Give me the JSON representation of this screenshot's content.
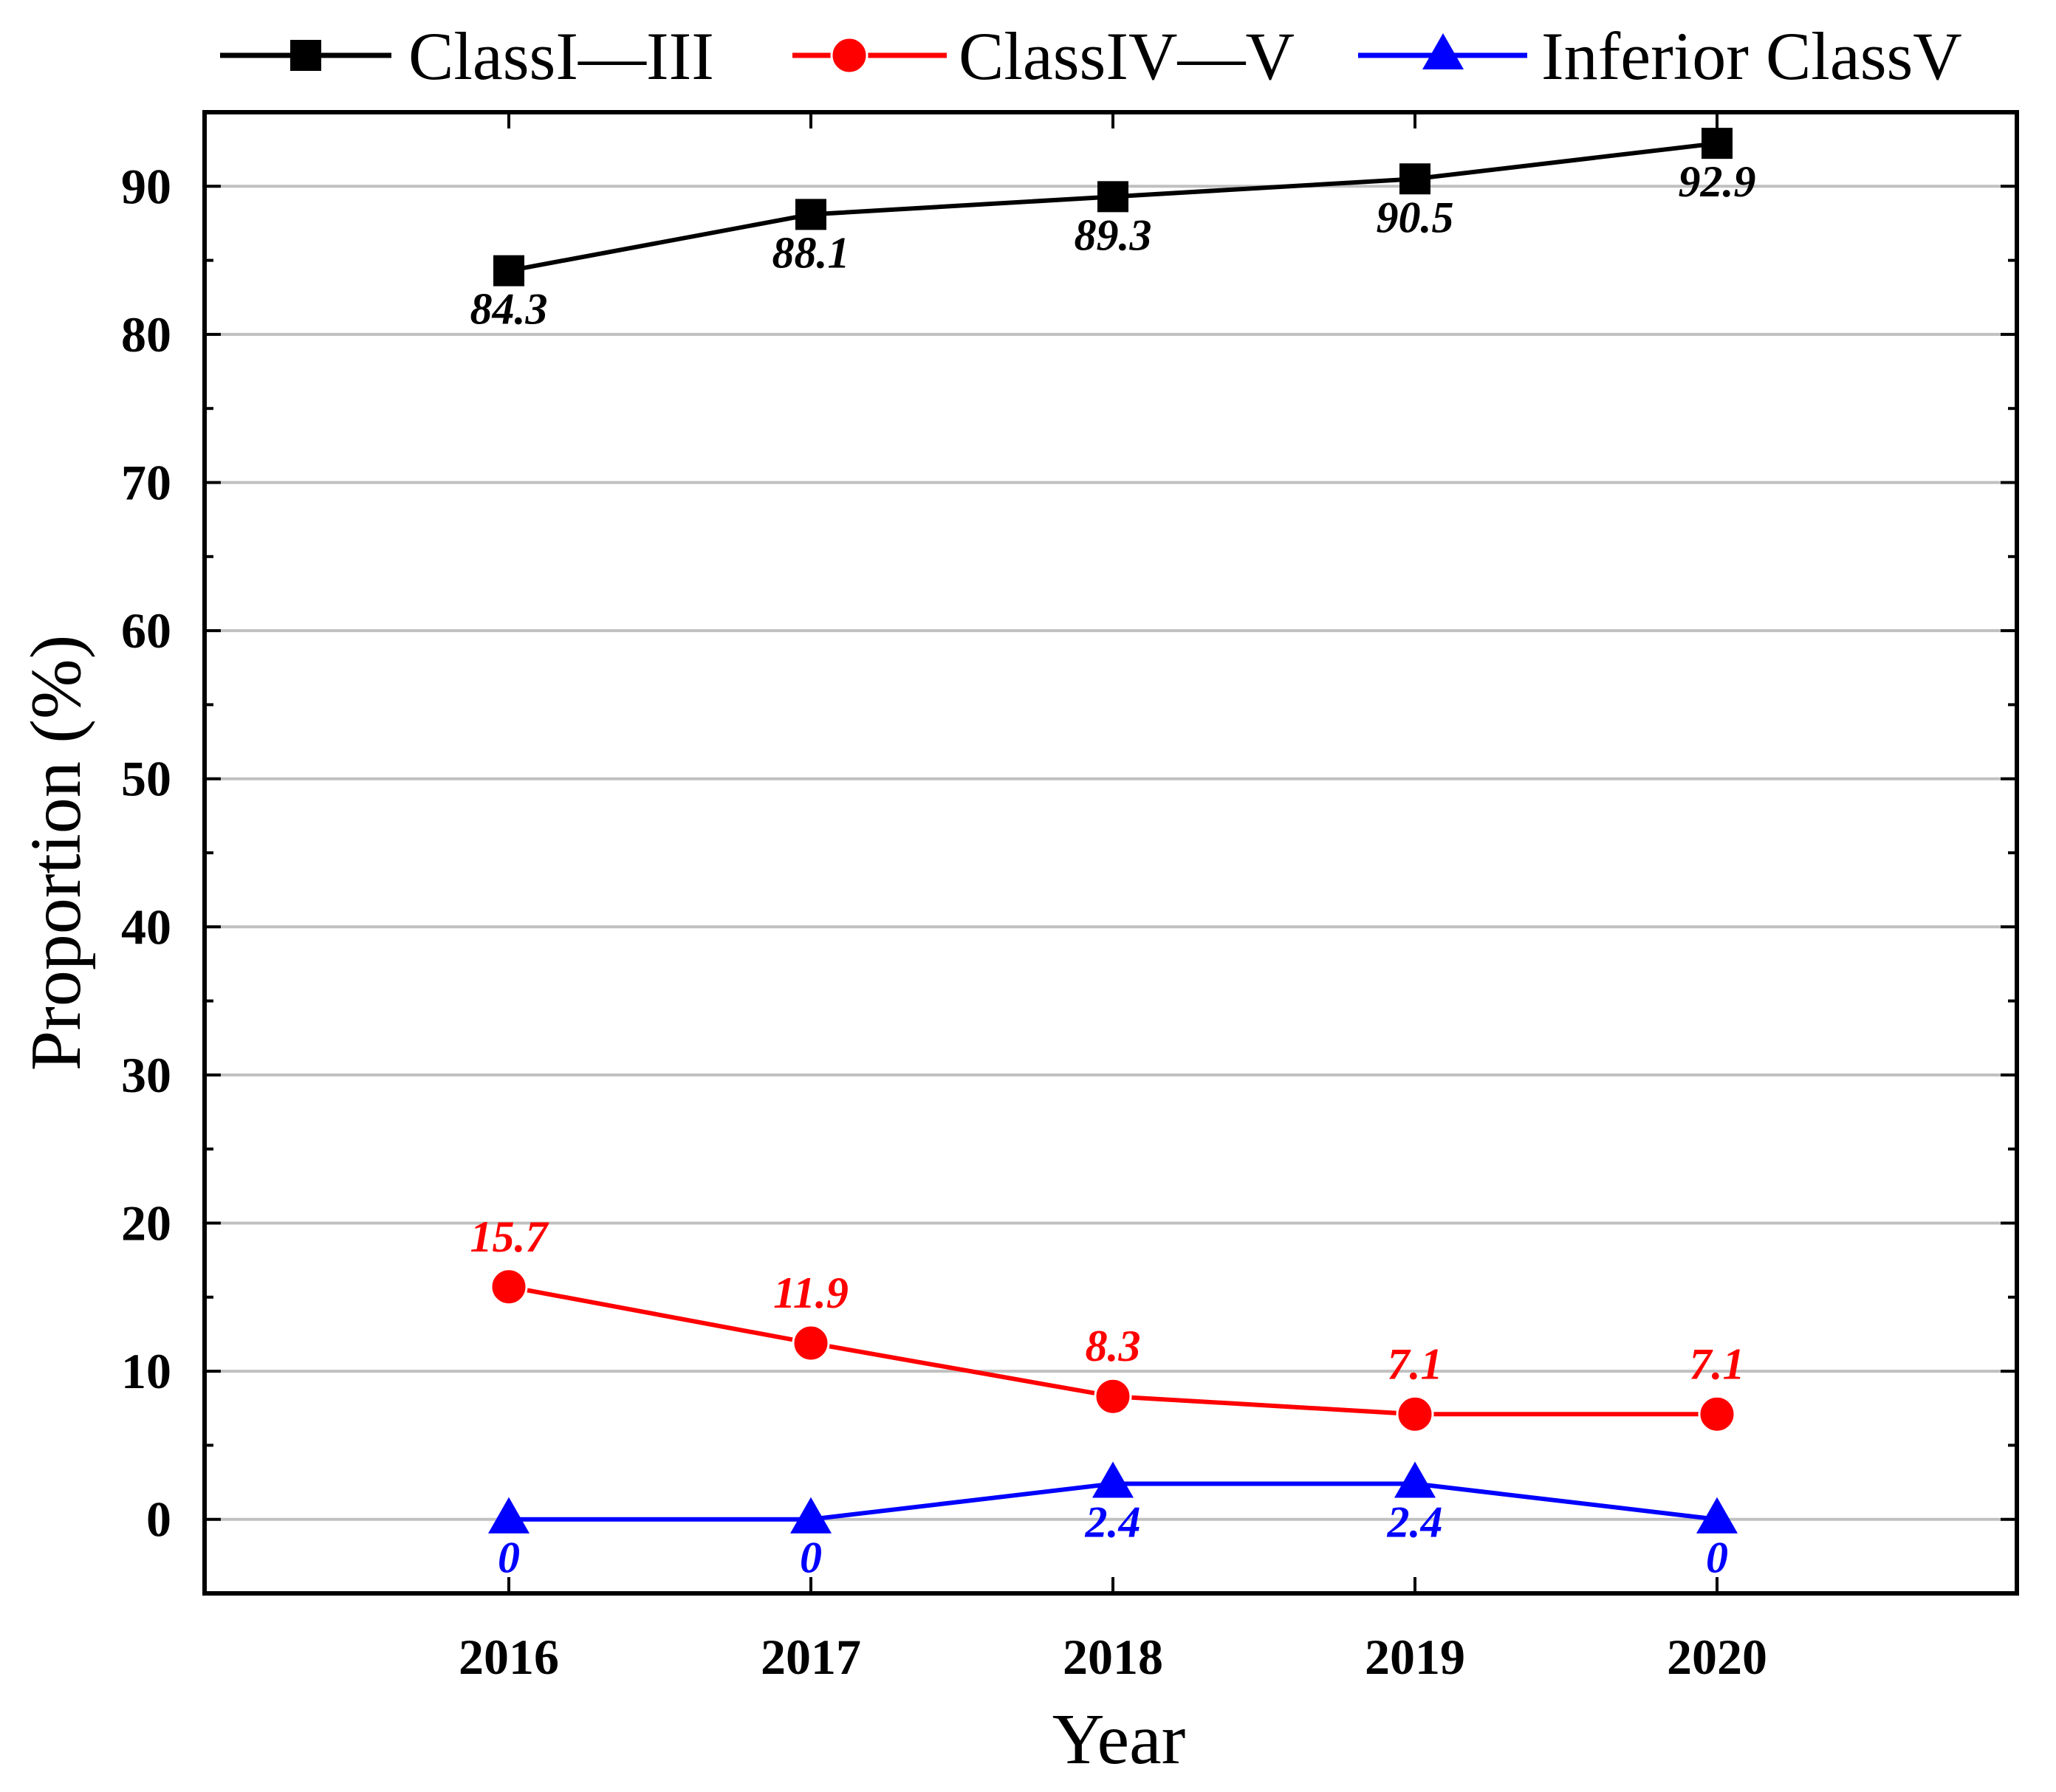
{
  "chart_data": {
    "type": "line",
    "title": "",
    "xlabel": "Year",
    "ylabel": "Proportion (%)",
    "categories": [
      "2016",
      "2017",
      "2018",
      "2019",
      "2020"
    ],
    "ylim": [
      -5,
      95
    ],
    "yticks": [
      0,
      10,
      20,
      30,
      40,
      50,
      60,
      70,
      80,
      90
    ],
    "yticks_labels": [
      "0",
      "10",
      "20",
      "30",
      "40",
      "50",
      "60",
      "70",
      "80",
      "90"
    ],
    "grid": true,
    "legend_position": "top",
    "series": [
      {
        "name": "ClassI—III",
        "color": "#000000",
        "marker": "square",
        "values": [
          84.3,
          88.1,
          89.3,
          90.5,
          92.9
        ],
        "labels": [
          "84.3",
          "88.1",
          "89.3",
          "90.5",
          "92.9"
        ],
        "label_position": "below"
      },
      {
        "name": "ClassIV—V",
        "color": "#ff0000",
        "marker": "circle",
        "values": [
          15.7,
          11.9,
          8.3,
          7.1,
          7.1
        ],
        "labels": [
          "15.7",
          "11.9",
          "8.3",
          "7.1",
          "7.1"
        ],
        "label_position": "above"
      },
      {
        "name": "Inferior ClassV",
        "color": "#0000ff",
        "marker": "triangle",
        "values": [
          0,
          0,
          2.4,
          2.4,
          0
        ],
        "labels": [
          "0",
          "0",
          "2.4",
          "2.4",
          "0"
        ],
        "label_position": "below"
      }
    ]
  }
}
